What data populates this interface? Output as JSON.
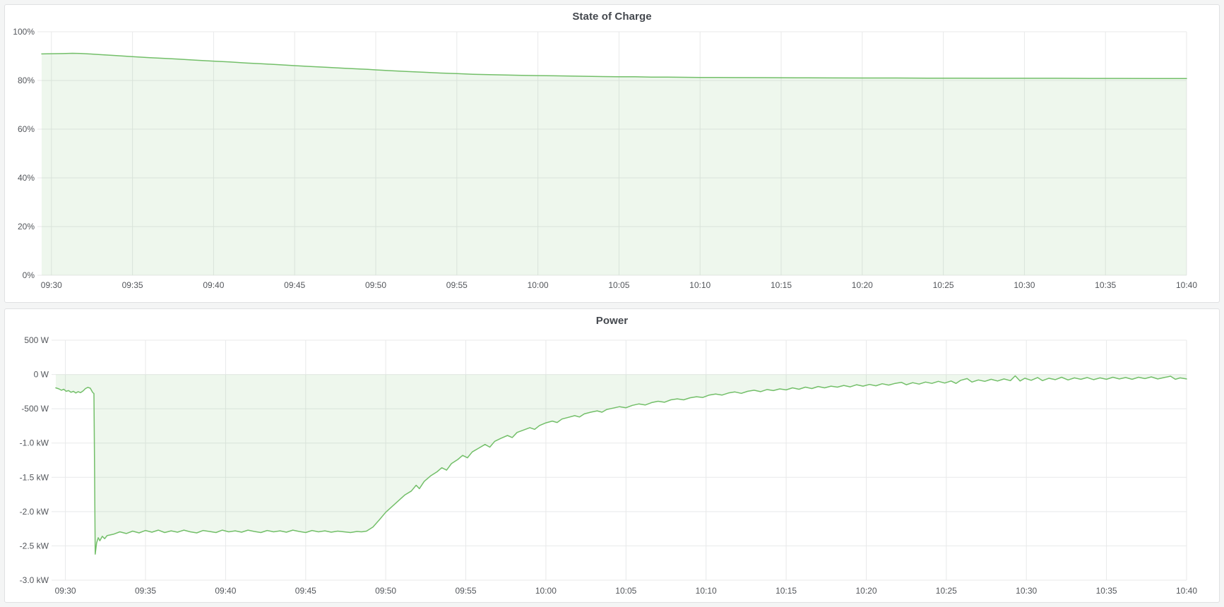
{
  "page": {
    "background_color": "#f4f5f5",
    "panel_background": "#ffffff",
    "panel_border_color": "#e0e1e3",
    "title_color": "#44484e",
    "accent_green": "#73bf69"
  },
  "chart_data": [
    {
      "id": "state-of-charge",
      "type": "area",
      "title": "State of Charge",
      "xlabel": "",
      "ylabel": "",
      "x_unit": "minutes after 09:30",
      "x_range": [
        -0.6,
        70
      ],
      "y_range": [
        0,
        100
      ],
      "fill_to": 0,
      "grid": true,
      "legend": "none",
      "line_color": "#73bf69",
      "fill_color": "rgba(115,191,105,0.12)",
      "grid_color": "#e8e9ea",
      "tick_color": "#53565b",
      "layout": {
        "axis_width": 52,
        "right_pad": 46,
        "plot_top": 6,
        "plot_bottom": 351,
        "x_label_y": 369
      },
      "x_ticks": [
        {
          "t": 0,
          "label": "09:30"
        },
        {
          "t": 5,
          "label": "09:35"
        },
        {
          "t": 10,
          "label": "09:40"
        },
        {
          "t": 15,
          "label": "09:45"
        },
        {
          "t": 20,
          "label": "09:50"
        },
        {
          "t": 25,
          "label": "09:55"
        },
        {
          "t": 30,
          "label": "10:00"
        },
        {
          "t": 35,
          "label": "10:05"
        },
        {
          "t": 40,
          "label": "10:10"
        },
        {
          "t": 45,
          "label": "10:15"
        },
        {
          "t": 50,
          "label": "10:20"
        },
        {
          "t": 55,
          "label": "10:25"
        },
        {
          "t": 60,
          "label": "10:30"
        },
        {
          "t": 65,
          "label": "10:35"
        },
        {
          "t": 70,
          "label": "10:40"
        }
      ],
      "y_ticks": [
        {
          "v": 100,
          "label": "100%"
        },
        {
          "v": 80,
          "label": "80%"
        },
        {
          "v": 60,
          "label": "60%"
        },
        {
          "v": 40,
          "label": "40%"
        },
        {
          "v": 20,
          "label": "20%"
        },
        {
          "v": 0,
          "label": "0%"
        }
      ],
      "points": [
        [
          -0.6,
          90.9
        ],
        [
          0,
          91.0
        ],
        [
          0.7,
          91.05
        ],
        [
          1.3,
          91.15
        ],
        [
          1.8,
          91.1
        ],
        [
          2.5,
          90.85
        ],
        [
          3,
          90.6
        ],
        [
          4,
          90.2
        ],
        [
          5,
          89.8
        ],
        [
          6,
          89.4
        ],
        [
          7,
          89.05
        ],
        [
          8,
          88.7
        ],
        [
          9,
          88.3
        ],
        [
          10,
          87.95
        ],
        [
          11,
          87.6
        ],
        [
          12,
          87.2
        ],
        [
          13,
          86.85
        ],
        [
          14,
          86.5
        ],
        [
          15,
          86.1
        ],
        [
          16,
          85.75
        ],
        [
          17,
          85.4
        ],
        [
          18,
          85.05
        ],
        [
          19,
          84.7
        ],
        [
          19.5,
          84.55
        ],
        [
          20,
          84.35
        ],
        [
          21,
          84.0
        ],
        [
          22,
          83.65
        ],
        [
          23,
          83.35
        ],
        [
          24,
          83.05
        ],
        [
          25,
          82.8
        ],
        [
          26,
          82.55
        ],
        [
          27,
          82.4
        ],
        [
          28,
          82.25
        ],
        [
          29,
          82.1
        ],
        [
          30,
          82.0
        ],
        [
          31,
          81.9
        ],
        [
          32,
          81.8
        ],
        [
          33,
          81.7
        ],
        [
          34,
          81.6
        ],
        [
          35,
          81.55
        ],
        [
          36,
          81.5
        ],
        [
          37,
          81.4
        ],
        [
          38,
          81.35
        ],
        [
          40,
          81.25
        ],
        [
          42,
          81.2
        ],
        [
          44,
          81.15
        ],
        [
          46,
          81.1
        ],
        [
          48,
          81.05
        ],
        [
          50,
          81.0
        ],
        [
          52,
          81.0
        ],
        [
          54,
          80.95
        ],
        [
          56,
          80.95
        ],
        [
          58,
          80.9
        ],
        [
          60,
          80.9
        ],
        [
          62,
          80.9
        ],
        [
          64,
          80.85
        ],
        [
          66,
          80.85
        ],
        [
          68,
          80.8
        ],
        [
          70,
          80.8
        ]
      ]
    },
    {
      "id": "power",
      "type": "area",
      "title": "Power",
      "xlabel": "",
      "ylabel": "",
      "x_unit": "minutes after 09:30",
      "y_unit": "W",
      "x_range": [
        -0.6,
        70
      ],
      "y_range": [
        -3000,
        500
      ],
      "fill_to": 0,
      "grid": true,
      "legend": "none",
      "line_color": "#73bf69",
      "fill_color": "rgba(115,191,105,0.12)",
      "grid_color": "#e8e9ea",
      "tick_color": "#53565b",
      "layout": {
        "axis_width": 72,
        "right_pad": 46,
        "plot_top": 12,
        "plot_bottom": 352,
        "x_label_y": 371
      },
      "x_ticks": [
        {
          "t": 0,
          "label": "09:30"
        },
        {
          "t": 5,
          "label": "09:35"
        },
        {
          "t": 10,
          "label": "09:40"
        },
        {
          "t": 15,
          "label": "09:45"
        },
        {
          "t": 20,
          "label": "09:50"
        },
        {
          "t": 25,
          "label": "09:55"
        },
        {
          "t": 30,
          "label": "10:00"
        },
        {
          "t": 35,
          "label": "10:05"
        },
        {
          "t": 40,
          "label": "10:10"
        },
        {
          "t": 45,
          "label": "10:15"
        },
        {
          "t": 50,
          "label": "10:20"
        },
        {
          "t": 55,
          "label": "10:25"
        },
        {
          "t": 60,
          "label": "10:30"
        },
        {
          "t": 65,
          "label": "10:35"
        },
        {
          "t": 70,
          "label": "10:40"
        }
      ],
      "y_ticks": [
        {
          "v": 500,
          "label": "500 W"
        },
        {
          "v": 0,
          "label": "0 W"
        },
        {
          "v": -500,
          "label": "-500 W"
        },
        {
          "v": -1000,
          "label": "-1.0 kW"
        },
        {
          "v": -1500,
          "label": "-1.5 kW"
        },
        {
          "v": -2000,
          "label": "-2.0 kW"
        },
        {
          "v": -2500,
          "label": "-2.5 kW"
        },
        {
          "v": -3000,
          "label": "-3.0 kW"
        }
      ],
      "points": [
        [
          -0.6,
          -195
        ],
        [
          -0.4,
          -210
        ],
        [
          -0.25,
          -230
        ],
        [
          -0.1,
          -215
        ],
        [
          0.05,
          -245
        ],
        [
          0.2,
          -235
        ],
        [
          0.35,
          -260
        ],
        [
          0.5,
          -245
        ],
        [
          0.65,
          -270
        ],
        [
          0.8,
          -250
        ],
        [
          0.95,
          -265
        ],
        [
          1.1,
          -240
        ],
        [
          1.25,
          -205
        ],
        [
          1.4,
          -188
        ],
        [
          1.55,
          -200
        ],
        [
          1.7,
          -262
        ],
        [
          1.78,
          -278
        ],
        [
          1.82,
          -1400
        ],
        [
          1.86,
          -2620
        ],
        [
          1.95,
          -2455
        ],
        [
          2.05,
          -2380
        ],
        [
          2.15,
          -2425
        ],
        [
          2.3,
          -2360
        ],
        [
          2.45,
          -2395
        ],
        [
          2.6,
          -2350
        ],
        [
          3.0,
          -2330
        ],
        [
          3.4,
          -2295
        ],
        [
          3.8,
          -2320
        ],
        [
          4.2,
          -2285
        ],
        [
          4.6,
          -2310
        ],
        [
          5.0,
          -2275
        ],
        [
          5.4,
          -2300
        ],
        [
          5.8,
          -2270
        ],
        [
          6.2,
          -2305
        ],
        [
          6.6,
          -2280
        ],
        [
          7.0,
          -2300
        ],
        [
          7.4,
          -2270
        ],
        [
          7.8,
          -2295
        ],
        [
          8.2,
          -2310
        ],
        [
          8.6,
          -2275
        ],
        [
          9.0,
          -2290
        ],
        [
          9.4,
          -2305
        ],
        [
          9.8,
          -2270
        ],
        [
          10.2,
          -2295
        ],
        [
          10.6,
          -2280
        ],
        [
          11.0,
          -2300
        ],
        [
          11.4,
          -2270
        ],
        [
          11.8,
          -2290
        ],
        [
          12.2,
          -2305
        ],
        [
          12.6,
          -2275
        ],
        [
          13.0,
          -2295
        ],
        [
          13.4,
          -2280
        ],
        [
          13.8,
          -2300
        ],
        [
          14.2,
          -2270
        ],
        [
          14.6,
          -2290
        ],
        [
          15.0,
          -2305
        ],
        [
          15.4,
          -2275
        ],
        [
          15.8,
          -2295
        ],
        [
          16.2,
          -2280
        ],
        [
          16.6,
          -2300
        ],
        [
          17.0,
          -2285
        ],
        [
          17.4,
          -2295
        ],
        [
          17.8,
          -2305
        ],
        [
          18.2,
          -2290
        ],
        [
          18.5,
          -2295
        ],
        [
          18.8,
          -2285
        ],
        [
          19.2,
          -2225
        ],
        [
          19.6,
          -2120
        ],
        [
          20.0,
          -2010
        ],
        [
          20.4,
          -1925
        ],
        [
          20.8,
          -1840
        ],
        [
          21.2,
          -1755
        ],
        [
          21.6,
          -1700
        ],
        [
          21.9,
          -1615
        ],
        [
          22.1,
          -1665
        ],
        [
          22.4,
          -1560
        ],
        [
          22.8,
          -1480
        ],
        [
          23.2,
          -1420
        ],
        [
          23.5,
          -1360
        ],
        [
          23.8,
          -1395
        ],
        [
          24.1,
          -1300
        ],
        [
          24.5,
          -1240
        ],
        [
          24.8,
          -1180
        ],
        [
          25.1,
          -1215
        ],
        [
          25.4,
          -1130
        ],
        [
          25.8,
          -1075
        ],
        [
          26.2,
          -1020
        ],
        [
          26.5,
          -1060
        ],
        [
          26.8,
          -975
        ],
        [
          27.2,
          -930
        ],
        [
          27.6,
          -890
        ],
        [
          27.9,
          -920
        ],
        [
          28.2,
          -845
        ],
        [
          28.6,
          -810
        ],
        [
          29.0,
          -775
        ],
        [
          29.3,
          -800
        ],
        [
          29.6,
          -745
        ],
        [
          30.0,
          -705
        ],
        [
          30.4,
          -680
        ],
        [
          30.7,
          -700
        ],
        [
          31.0,
          -650
        ],
        [
          31.4,
          -625
        ],
        [
          31.8,
          -600
        ],
        [
          32.1,
          -620
        ],
        [
          32.4,
          -575
        ],
        [
          32.8,
          -550
        ],
        [
          33.2,
          -530
        ],
        [
          33.5,
          -550
        ],
        [
          33.8,
          -510
        ],
        [
          34.2,
          -490
        ],
        [
          34.6,
          -470
        ],
        [
          35.0,
          -485
        ],
        [
          35.4,
          -450
        ],
        [
          35.8,
          -430
        ],
        [
          36.2,
          -445
        ],
        [
          36.6,
          -410
        ],
        [
          37.0,
          -390
        ],
        [
          37.4,
          -405
        ],
        [
          37.8,
          -370
        ],
        [
          38.2,
          -355
        ],
        [
          38.6,
          -370
        ],
        [
          39.0,
          -340
        ],
        [
          39.4,
          -325
        ],
        [
          39.8,
          -335
        ],
        [
          40.2,
          -300
        ],
        [
          40.6,
          -285
        ],
        [
          41.0,
          -300
        ],
        [
          41.4,
          -270
        ],
        [
          41.8,
          -255
        ],
        [
          42.2,
          -275
        ],
        [
          42.6,
          -245
        ],
        [
          43.0,
          -230
        ],
        [
          43.4,
          -250
        ],
        [
          43.8,
          -220
        ],
        [
          44.2,
          -235
        ],
        [
          44.6,
          -210
        ],
        [
          45.0,
          -225
        ],
        [
          45.4,
          -195
        ],
        [
          45.8,
          -215
        ],
        [
          46.2,
          -185
        ],
        [
          46.6,
          -205
        ],
        [
          47.0,
          -175
        ],
        [
          47.4,
          -195
        ],
        [
          47.8,
          -170
        ],
        [
          48.2,
          -185
        ],
        [
          48.6,
          -160
        ],
        [
          49.0,
          -180
        ],
        [
          49.4,
          -150
        ],
        [
          49.8,
          -170
        ],
        [
          50.2,
          -145
        ],
        [
          50.6,
          -165
        ],
        [
          51.0,
          -135
        ],
        [
          51.4,
          -155
        ],
        [
          51.8,
          -130
        ],
        [
          52.2,
          -115
        ],
        [
          52.5,
          -150
        ],
        [
          52.9,
          -120
        ],
        [
          53.3,
          -140
        ],
        [
          53.7,
          -110
        ],
        [
          54.1,
          -130
        ],
        [
          54.5,
          -100
        ],
        [
          54.9,
          -125
        ],
        [
          55.3,
          -95
        ],
        [
          55.6,
          -130
        ],
        [
          55.9,
          -85
        ],
        [
          56.3,
          -60
        ],
        [
          56.6,
          -110
        ],
        [
          57.0,
          -80
        ],
        [
          57.4,
          -100
        ],
        [
          57.8,
          -70
        ],
        [
          58.2,
          -95
        ],
        [
          58.6,
          -65
        ],
        [
          59.0,
          -90
        ],
        [
          59.3,
          -20
        ],
        [
          59.6,
          -95
        ],
        [
          59.9,
          -55
        ],
        [
          60.3,
          -85
        ],
        [
          60.7,
          -45
        ],
        [
          61.0,
          -90
        ],
        [
          61.4,
          -55
        ],
        [
          61.8,
          -75
        ],
        [
          62.2,
          -40
        ],
        [
          62.6,
          -80
        ],
        [
          63.0,
          -50
        ],
        [
          63.4,
          -70
        ],
        [
          63.8,
          -45
        ],
        [
          64.2,
          -75
        ],
        [
          64.6,
          -50
        ],
        [
          65.0,
          -70
        ],
        [
          65.4,
          -40
        ],
        [
          65.8,
          -65
        ],
        [
          66.2,
          -45
        ],
        [
          66.6,
          -70
        ],
        [
          67.0,
          -40
        ],
        [
          67.4,
          -60
        ],
        [
          67.8,
          -35
        ],
        [
          68.2,
          -65
        ],
        [
          68.6,
          -45
        ],
        [
          69.0,
          -25
        ],
        [
          69.3,
          -70
        ],
        [
          69.6,
          -50
        ],
        [
          70.0,
          -65
        ]
      ]
    }
  ]
}
